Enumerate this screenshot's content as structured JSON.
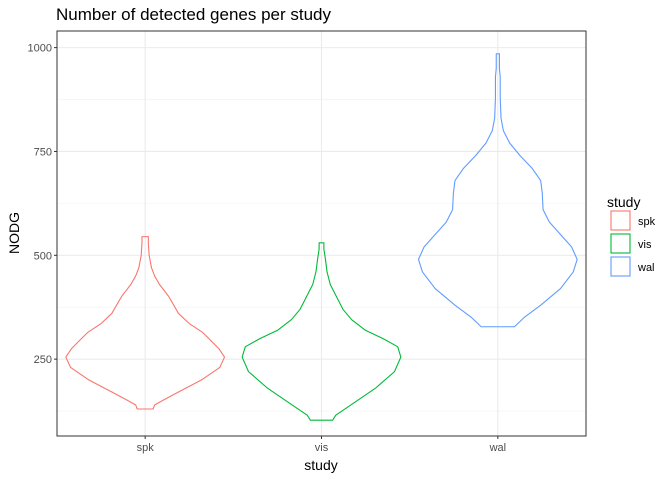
{
  "chart_data": {
    "type": "violin",
    "title": "Number of detected genes per study",
    "xlabel": "study",
    "ylabel": "NODG",
    "categories": [
      "spk",
      "vis",
      "wal"
    ],
    "ylim": [
      65,
      1040
    ],
    "yticks": [
      250,
      500,
      750,
      1000
    ],
    "grid": true,
    "legend": {
      "title": "study",
      "position": "right",
      "entries": [
        "spk",
        "vis",
        "wal"
      ]
    },
    "colors": {
      "spk": "#F8766D",
      "vis": "#00BA38",
      "wal": "#619CFF"
    },
    "series": [
      {
        "name": "spk",
        "min": 130,
        "max": 545,
        "profile": [
          [
            130,
            0.1
          ],
          [
            140,
            0.12
          ],
          [
            165,
            0.36
          ],
          [
            200,
            0.71
          ],
          [
            230,
            0.94
          ],
          [
            255,
            1.0
          ],
          [
            275,
            0.93
          ],
          [
            300,
            0.8
          ],
          [
            315,
            0.72
          ],
          [
            335,
            0.56
          ],
          [
            360,
            0.42
          ],
          [
            400,
            0.3
          ],
          [
            430,
            0.18
          ],
          [
            450,
            0.12
          ],
          [
            470,
            0.08
          ],
          [
            500,
            0.05
          ],
          [
            530,
            0.04
          ],
          [
            545,
            0.04
          ]
        ]
      },
      {
        "name": "vis",
        "min": 103,
        "max": 530,
        "profile": [
          [
            103,
            0.14
          ],
          [
            115,
            0.18
          ],
          [
            145,
            0.41
          ],
          [
            180,
            0.68
          ],
          [
            220,
            0.92
          ],
          [
            255,
            1.0
          ],
          [
            280,
            0.96
          ],
          [
            300,
            0.77
          ],
          [
            320,
            0.55
          ],
          [
            345,
            0.38
          ],
          [
            370,
            0.27
          ],
          [
            400,
            0.19
          ],
          [
            430,
            0.11
          ],
          [
            460,
            0.07
          ],
          [
            490,
            0.05
          ],
          [
            515,
            0.03
          ],
          [
            530,
            0.03
          ]
        ]
      },
      {
        "name": "wal",
        "min": 328,
        "max": 985,
        "profile": [
          [
            328,
            0.21
          ],
          [
            350,
            0.33
          ],
          [
            380,
            0.54
          ],
          [
            420,
            0.79
          ],
          [
            460,
            0.95
          ],
          [
            490,
            1.0
          ],
          [
            520,
            0.93
          ],
          [
            550,
            0.79
          ],
          [
            580,
            0.65
          ],
          [
            610,
            0.57
          ],
          [
            650,
            0.56
          ],
          [
            680,
            0.54
          ],
          [
            710,
            0.43
          ],
          [
            740,
            0.28
          ],
          [
            770,
            0.15
          ],
          [
            800,
            0.07
          ],
          [
            830,
            0.04
          ],
          [
            880,
            0.03
          ],
          [
            930,
            0.03
          ],
          [
            950,
            0.02
          ],
          [
            985,
            0.02
          ]
        ]
      }
    ]
  }
}
